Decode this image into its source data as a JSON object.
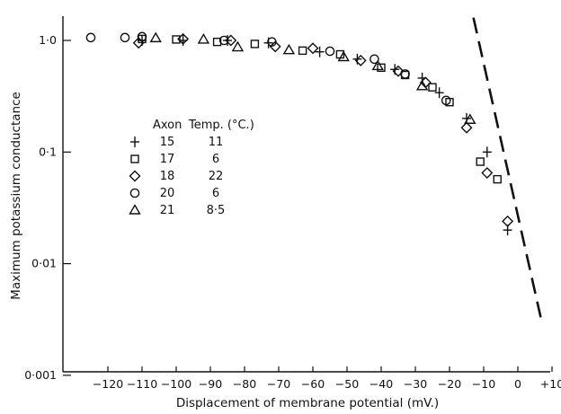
{
  "chart_data": {
    "type": "scatter",
    "xlabel": "Displacement of membrane potential (mV.)",
    "ylabel": "Maximum potassium conductance",
    "x_scale": "linear",
    "y_scale": "log",
    "xlim": [
      -127,
      12
    ],
    "ylim": [
      0.001,
      1.6
    ],
    "x_ticks": [
      -120,
      -110,
      -100,
      -90,
      -80,
      -70,
      -60,
      -50,
      -40,
      -30,
      -20,
      -10,
      0,
      10
    ],
    "x_tick_labels": [
      "−120",
      "−110",
      "−100",
      "−90",
      "−80",
      "−70",
      "−60",
      "−50",
      "−40",
      "−30",
      "−20",
      "−10",
      "0",
      "+10"
    ],
    "y_ticks": [
      1.0,
      0.1,
      0.01,
      0.001
    ],
    "y_tick_labels": [
      "1·0",
      "0·1",
      "0·01",
      "0·001"
    ],
    "grid": false,
    "legend": {
      "placement": "upper-left-inside",
      "headers": [
        "Axon",
        "Temp. (°C.)"
      ],
      "rows": [
        {
          "symbol": "plus",
          "axon": "15",
          "temp": "11"
        },
        {
          "symbol": "square",
          "axon": "17",
          "temp": "6"
        },
        {
          "symbol": "diamond",
          "axon": "18",
          "temp": "22"
        },
        {
          "symbol": "circle",
          "axon": "20",
          "temp": "6"
        },
        {
          "symbol": "triangle",
          "axon": "21",
          "temp": "8·5"
        }
      ]
    },
    "series": [
      {
        "name": "15",
        "marker": "plus",
        "points": [
          [
            -110,
            1.0
          ],
          [
            -98,
            1.0
          ],
          [
            -85,
            1.0
          ],
          [
            -73,
            0.95
          ],
          [
            -58,
            0.79
          ],
          [
            -47,
            0.68
          ],
          [
            -36,
            0.55
          ],
          [
            -28,
            0.46
          ],
          [
            -23,
            0.34
          ],
          [
            -15,
            0.2
          ],
          [
            -9,
            0.1
          ],
          [
            -3,
            0.02
          ]
        ]
      },
      {
        "name": "17",
        "marker": "square",
        "points": [
          [
            -110,
            1.03
          ],
          [
            -100,
            1.02
          ],
          [
            -88,
            0.97
          ],
          [
            -77,
            0.93
          ],
          [
            -63,
            0.81
          ],
          [
            -52,
            0.75
          ],
          [
            -40,
            0.57
          ],
          [
            -33,
            0.49
          ],
          [
            -25,
            0.38
          ],
          [
            -20,
            0.28
          ],
          [
            -11,
            0.082
          ],
          [
            -6,
            0.057
          ]
        ]
      },
      {
        "name": "18",
        "marker": "diamond",
        "points": [
          [
            -111,
            0.95
          ],
          [
            -98,
            1.03
          ],
          [
            -84,
            1.0
          ],
          [
            -71,
            0.88
          ],
          [
            -60,
            0.85
          ],
          [
            -46,
            0.66
          ],
          [
            -35,
            0.53
          ],
          [
            -27,
            0.42
          ],
          [
            -15,
            0.165
          ],
          [
            -9,
            0.065
          ],
          [
            -3,
            0.024
          ]
        ]
      },
      {
        "name": "20",
        "marker": "circle",
        "points": [
          [
            -125,
            1.06
          ],
          [
            -115,
            1.06
          ],
          [
            -110,
            1.08
          ],
          [
            -86,
            1.0
          ],
          [
            -72,
            0.97
          ],
          [
            -55,
            0.8
          ],
          [
            -42,
            0.68
          ],
          [
            -33,
            0.5
          ],
          [
            -21,
            0.29
          ]
        ]
      },
      {
        "name": "21",
        "marker": "triangle",
        "points": [
          [
            -106,
            1.05
          ],
          [
            -92,
            1.02
          ],
          [
            -82,
            0.87
          ],
          [
            -67,
            0.82
          ],
          [
            -51,
            0.71
          ],
          [
            -41,
            0.59
          ],
          [
            -28,
            0.39
          ],
          [
            -14,
            0.195
          ]
        ]
      }
    ],
    "fit_line": {
      "style": "dashed",
      "from": [
        -13,
        1.6
      ],
      "to": [
        7,
        0.003
      ]
    }
  }
}
